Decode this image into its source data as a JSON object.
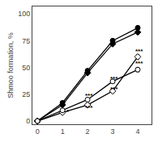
{
  "chart_data": {
    "type": "line",
    "ylabel": "Shmoo formation, %",
    "x": [
      0,
      1,
      2,
      3,
      4
    ],
    "series": [
      {
        "color": "#000000",
        "marker": "circle",
        "values": [
          0,
          17,
          47,
          75,
          87
        ],
        "errors": [
          0,
          1.2,
          1.5,
          1.8,
          2.0
        ]
      },
      {
        "color": "#000000",
        "marker": "diamond",
        "values": [
          0,
          15,
          45,
          72,
          83
        ],
        "errors": [
          0,
          1.2,
          1.5,
          1.8,
          2.0
        ]
      },
      {
        "color": "#000000",
        "marker": "diamond-open",
        "values": [
          0,
          8,
          15,
          28,
          60
        ],
        "errors": [
          0,
          1.2,
          1.5,
          1.8,
          2.0
        ]
      },
      {
        "color": "#000000",
        "marker": "circle-open",
        "values": [
          0,
          10,
          20,
          37,
          48
        ],
        "errors": [
          0,
          1.2,
          1.5,
          1.8,
          2.0
        ]
      }
    ],
    "annotations": [
      {
        "x": 1.08,
        "y": 3.5,
        "text": "*"
      },
      {
        "x": 1.85,
        "y": 7.5,
        "text": "***"
      },
      {
        "x": 1.85,
        "y": 18.5,
        "text": "***"
      },
      {
        "x": 2.85,
        "y": 25.0,
        "text": "***"
      },
      {
        "x": 2.85,
        "y": 35.0,
        "text": "***"
      },
      {
        "x": 3.85,
        "y": 49.0,
        "text": "***"
      },
      {
        "x": 3.85,
        "y": 60.0,
        "text": "***"
      }
    ],
    "xlim": [
      -0.2,
      4.55
    ],
    "ylim": [
      -3,
      107
    ],
    "xticks": [
      0,
      1,
      2,
      3,
      4
    ],
    "yticks": [
      0,
      25,
      50,
      75,
      100
    ],
    "grid": false
  }
}
